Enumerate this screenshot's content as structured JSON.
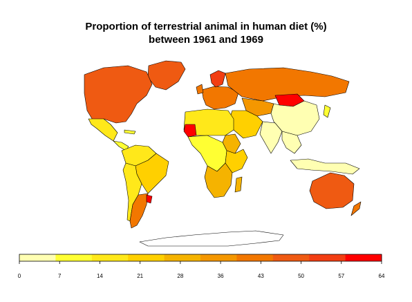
{
  "title": {
    "line1": "Proportion of terrestrial animal in human diet (%)",
    "line2": "between 1961 and 1969"
  },
  "legend": {
    "breaks": [
      "0",
      "7",
      "14",
      "21",
      "28",
      "36",
      "43",
      "50",
      "57",
      "64"
    ],
    "colors": [
      "#FFFFB2",
      "#FFFF33",
      "#FFE81A",
      "#FFD000",
      "#F5B300",
      "#F49700",
      "#F27700",
      "#EF5A12",
      "#F23E12",
      "#FF0000"
    ]
  },
  "regions": [
    {
      "id": "canada-usa",
      "name": "North America",
      "color": "#EF5A12"
    },
    {
      "id": "greenland",
      "name": "Greenland",
      "color": "#EF5A12"
    },
    {
      "id": "mexico",
      "name": "Mexico",
      "color": "#FFE81A"
    },
    {
      "id": "central-america",
      "name": "Central America",
      "color": "#FFFF33"
    },
    {
      "id": "south-america-north",
      "name": "Northern South America",
      "color": "#FFE81A"
    },
    {
      "id": "brazil",
      "name": "Brazil",
      "color": "#FFD000"
    },
    {
      "id": "argentina",
      "name": "Argentina",
      "color": "#F27700"
    },
    {
      "id": "uruguay",
      "name": "Uruguay",
      "color": "#FF0000"
    },
    {
      "id": "europe",
      "name": "Europe",
      "color": "#F27700"
    },
    {
      "id": "scandinavia",
      "name": "Scandinavia",
      "color": "#F23E12"
    },
    {
      "id": "russia",
      "name": "Russia",
      "color": "#F27700"
    },
    {
      "id": "mongolia",
      "name": "Mongolia",
      "color": "#FF0000"
    },
    {
      "id": "kazakhstan",
      "name": "Kazakhstan",
      "color": "#F49700"
    },
    {
      "id": "china",
      "name": "China",
      "color": "#FFFFB2"
    },
    {
      "id": "india",
      "name": "India",
      "color": "#FFFFB2"
    },
    {
      "id": "middle-east",
      "name": "Middle East",
      "color": "#FFD000"
    },
    {
      "id": "mauritania",
      "name": "Mauritania",
      "color": "#FF0000"
    },
    {
      "id": "north-africa",
      "name": "North Africa",
      "color": "#FFE81A"
    },
    {
      "id": "sudan",
      "name": "Sudan",
      "color": "#F5B300"
    },
    {
      "id": "central-africa",
      "name": "Central Africa",
      "color": "#FFFF33"
    },
    {
      "id": "east-africa",
      "name": "East Africa",
      "color": "#FFD000"
    },
    {
      "id": "southern-africa",
      "name": "Southern Africa",
      "color": "#F5B300"
    },
    {
      "id": "madagascar",
      "name": "Madagascar",
      "color": "#F5B300"
    },
    {
      "id": "southeast-asia",
      "name": "Southeast Asia",
      "color": "#FFFFB2"
    },
    {
      "id": "indonesia",
      "name": "Indonesia",
      "color": "#FFFFB2"
    },
    {
      "id": "japan",
      "name": "Japan",
      "color": "#FFFF33"
    },
    {
      "id": "australia",
      "name": "Australia",
      "color": "#EF5A12"
    },
    {
      "id": "new-zealand",
      "name": "New Zealand",
      "color": "#F27700"
    }
  ]
}
